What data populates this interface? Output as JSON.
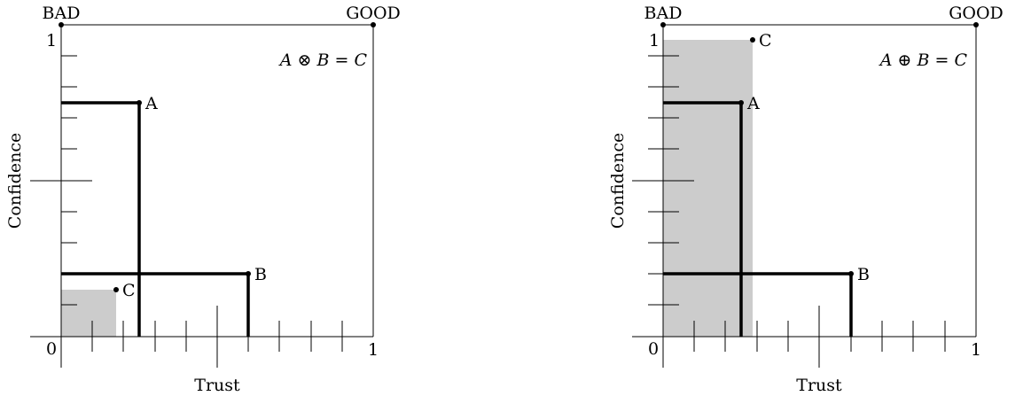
{
  "panels": [
    {
      "id": "left",
      "corner_bad": "BAD",
      "corner_good": "GOOD",
      "origin_label": "0",
      "x_one_label": "1",
      "y_one_label": "1",
      "xlabel": "Trust",
      "ylabel": "Confidence",
      "formula": "A ⊗ B = C",
      "points": [
        {
          "label": "A",
          "trust": 0.25,
          "confidence": 0.75
        },
        {
          "label": "B",
          "trust": 0.6,
          "confidence": 0.2
        },
        {
          "label": "C",
          "trust": 0.18,
          "confidence": 0.15
        }
      ]
    },
    {
      "id": "right",
      "corner_bad": "BAD",
      "corner_good": "GOOD",
      "origin_label": "0",
      "x_one_label": "1",
      "y_one_label": "1",
      "xlabel": "Trust",
      "ylabel": "Confidence",
      "formula": "A ⊕ B = C",
      "points": [
        {
          "label": "A",
          "trust": 0.25,
          "confidence": 0.75
        },
        {
          "label": "B",
          "trust": 0.6,
          "confidence": 0.2
        },
        {
          "label": "C",
          "trust": 0.29,
          "confidence": 0.95
        }
      ]
    }
  ],
  "colors": {
    "shade": "#cccccc",
    "ink": "#000000"
  }
}
